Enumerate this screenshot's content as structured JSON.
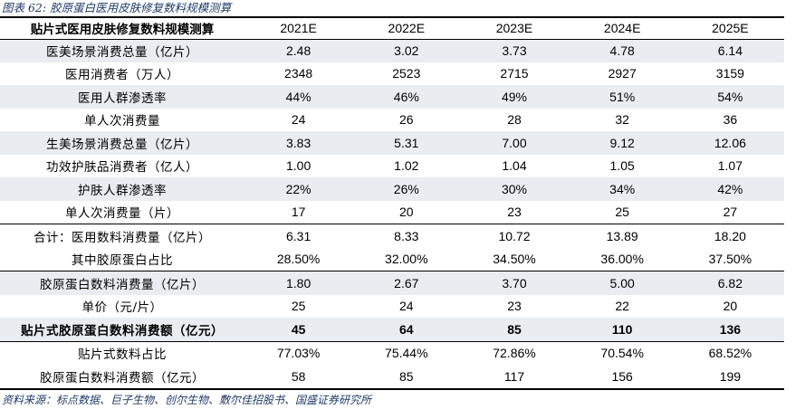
{
  "caption": "图表 62:  胶原蛋白医用皮肤修复数料规模测算",
  "table": {
    "header_label": "贴片式医用皮肤修复数料规模测算",
    "years": [
      "2021E",
      "2022E",
      "2023E",
      "2024E",
      "2025E"
    ],
    "rows": [
      {
        "label": "医美场景消费总量（亿片）",
        "values": [
          "2.48",
          "3.02",
          "3.73",
          "4.78",
          "6.14"
        ]
      },
      {
        "label": "医用消费者（万人）",
        "values": [
          "2348",
          "2523",
          "2715",
          "2927",
          "3159"
        ]
      },
      {
        "label": "医用人群渗透率",
        "values": [
          "44%",
          "46%",
          "49%",
          "51%",
          "54%"
        ]
      },
      {
        "label": "单人次消费量",
        "values": [
          "24",
          "26",
          "28",
          "32",
          "36"
        ]
      },
      {
        "label": "生美场景消费总量（亿片）",
        "values": [
          "3.83",
          "5.31",
          "7.00",
          "9.12",
          "12.06"
        ]
      },
      {
        "label": "功效护肤品消费者（亿人）",
        "values": [
          "1.00",
          "1.02",
          "1.04",
          "1.05",
          "1.07"
        ]
      },
      {
        "label": "护肤人群渗透率",
        "values": [
          "22%",
          "26%",
          "30%",
          "34%",
          "42%"
        ]
      },
      {
        "label": "单人次消费量（片）",
        "values": [
          "17",
          "20",
          "23",
          "25",
          "27"
        ]
      },
      {
        "label": "合计：医用数料消费量（亿片）",
        "values": [
          "6.31",
          "8.33",
          "10.72",
          "13.89",
          "18.20"
        ]
      },
      {
        "label": "其中胶原蛋白占比",
        "values": [
          "28.50%",
          "32.00%",
          "34.50%",
          "36.00%",
          "37.50%"
        ]
      },
      {
        "label": "胶原蛋白数料消费量（亿片）",
        "values": [
          "1.80",
          "2.67",
          "3.70",
          "5.00",
          "6.82"
        ]
      },
      {
        "label": "单价（元/片）",
        "values": [
          "25",
          "24",
          "23",
          "22",
          "20"
        ]
      },
      {
        "label": "贴片式胶原蛋白数料消费额（亿元）",
        "values": [
          "45",
          "64",
          "85",
          "110",
          "136"
        ]
      },
      {
        "label": "贴片式数料占比",
        "values": [
          "77.03%",
          "75.44%",
          "72.86%",
          "70.54%",
          "68.52%"
        ]
      },
      {
        "label": "胶原蛋白数料消费额（亿元）",
        "values": [
          "58",
          "85",
          "117",
          "156",
          "199"
        ]
      }
    ]
  },
  "source": "资料来源：标点数据、巨子生物、创尔生物、敷尔佳招股书、国盛证券研究所",
  "colors": {
    "shade": "#e9edf2",
    "caption": "#1f3a68"
  }
}
